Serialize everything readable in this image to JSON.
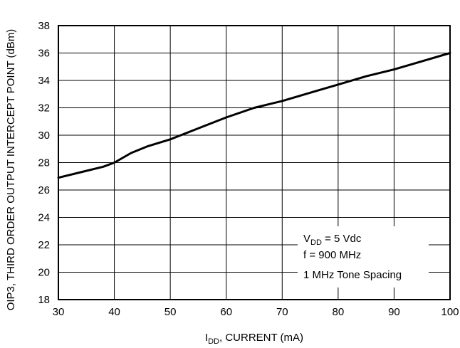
{
  "chart_data": {
    "type": "line",
    "title": "",
    "xlabel": {
      "main": "I",
      "sub": "DD",
      "rest": ", CURRENT (mA)"
    },
    "ylabel": "OIP3, THIRD ORDER OUTPUT INTERCEPT POINT (dBm)",
    "xlim": [
      30,
      100
    ],
    "ylim": [
      18,
      38
    ],
    "xticks": [
      "30",
      "40",
      "50",
      "60",
      "70",
      "80",
      "90",
      "100"
    ],
    "yticks": [
      "18",
      "20",
      "22",
      "24",
      "26",
      "28",
      "30",
      "32",
      "34",
      "36",
      "38"
    ],
    "grid": true,
    "series": [
      {
        "x": [
          30,
          34,
          38,
          40,
          43,
          46,
          50,
          55,
          60,
          65,
          70,
          75,
          80,
          85,
          90,
          95,
          100
        ],
        "y": [
          26.9,
          27.3,
          27.7,
          28.0,
          28.7,
          29.2,
          29.7,
          30.5,
          31.3,
          32.0,
          32.5,
          33.1,
          33.7,
          34.3,
          34.8,
          35.4,
          36.0
        ]
      }
    ],
    "annotations": [
      {
        "main": "V",
        "sub": "DD",
        "rest": " = 5 Vdc"
      },
      {
        "text": "f = 900 MHz"
      },
      {
        "text": "1 MHz Tone Spacing"
      }
    ]
  }
}
